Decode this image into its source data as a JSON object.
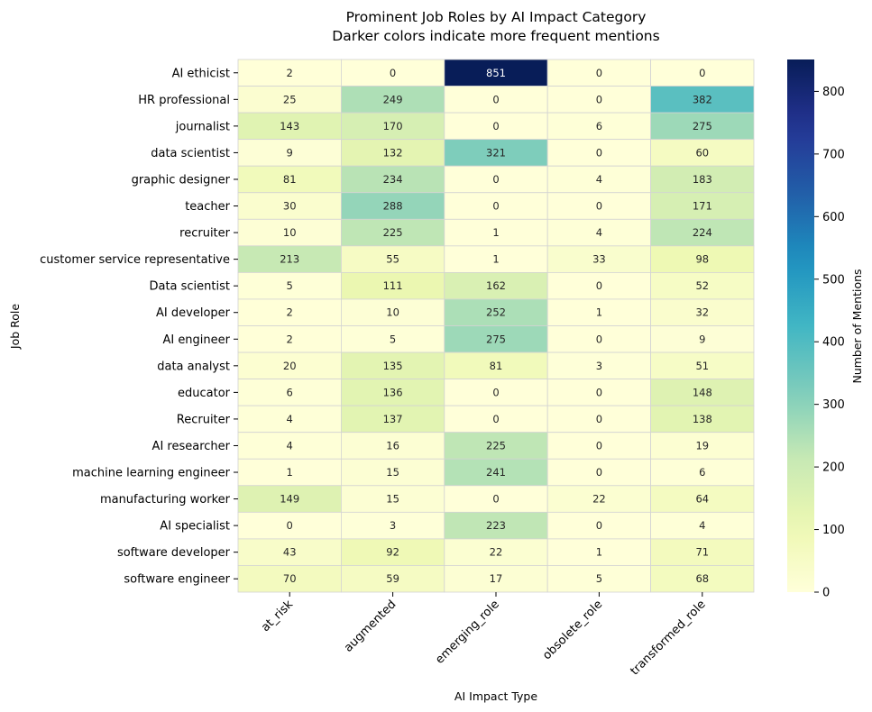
{
  "chart_data": {
    "type": "heatmap",
    "title": "Prominent Job Roles by AI Impact Category",
    "subtitle": "Darker colors indicate more frequent mentions",
    "xlabel": "AI Impact Type",
    "ylabel": "Job Role",
    "colorbar_label": "Number of Mentions",
    "colormap": "YlGnBu",
    "vmin": 0,
    "vmax": 851,
    "colorbar_ticks": [
      "0",
      "100",
      "200",
      "300",
      "400",
      "500",
      "600",
      "700",
      "800"
    ],
    "columns": [
      "at_risk",
      "augmented",
      "emerging_role",
      "obsolete_role",
      "transformed_role"
    ],
    "rows": [
      "AI ethicist",
      "HR professional",
      "journalist",
      "data scientist",
      "graphic designer",
      "teacher",
      "recruiter",
      "customer service representative",
      "Data scientist",
      "AI developer",
      "AI engineer",
      "data analyst",
      "educator",
      "Recruiter",
      "AI researcher",
      "machine learning engineer",
      "manufacturing worker",
      "AI specialist",
      "software developer",
      "software engineer"
    ],
    "values": [
      [
        2,
        0,
        851,
        0,
        0
      ],
      [
        25,
        249,
        0,
        0,
        382
      ],
      [
        143,
        170,
        0,
        6,
        275
      ],
      [
        9,
        132,
        321,
        0,
        60
      ],
      [
        81,
        234,
        0,
        4,
        183
      ],
      [
        30,
        288,
        0,
        0,
        171
      ],
      [
        10,
        225,
        1,
        4,
        224
      ],
      [
        213,
        55,
        1,
        33,
        98
      ],
      [
        5,
        111,
        162,
        0,
        52
      ],
      [
        2,
        10,
        252,
        1,
        32
      ],
      [
        2,
        5,
        275,
        0,
        9
      ],
      [
        20,
        135,
        81,
        3,
        51
      ],
      [
        6,
        136,
        0,
        0,
        148
      ],
      [
        4,
        137,
        0,
        0,
        138
      ],
      [
        4,
        16,
        225,
        0,
        19
      ],
      [
        1,
        15,
        241,
        0,
        6
      ],
      [
        149,
        15,
        0,
        22,
        64
      ],
      [
        0,
        3,
        223,
        0,
        4
      ],
      [
        43,
        92,
        22,
        1,
        71
      ],
      [
        70,
        59,
        17,
        5,
        68
      ]
    ]
  }
}
